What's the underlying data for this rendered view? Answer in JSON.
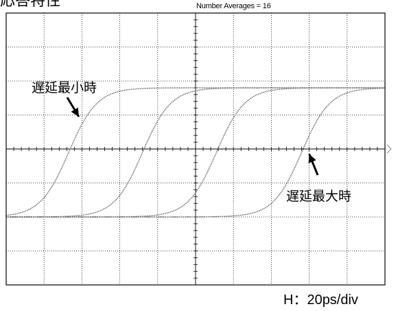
{
  "header": {
    "title": "応答特性",
    "averages_label": "Number Averages =  16"
  },
  "footer": {
    "horizontal_scale": "H：20ps/div"
  },
  "chart_data": {
    "type": "line",
    "title": "",
    "xlabel": "",
    "ylabel": "",
    "x_unit": "ps",
    "ps_per_div": 20,
    "x_divisions": 10,
    "y_divisions": 8,
    "xlim": [
      -100,
      100
    ],
    "ylim": [
      -4,
      4
    ],
    "grid": true,
    "trace_color": "#555555",
    "series": [
      {
        "low": -2.0,
        "high": 1.8,
        "center_ps": -67,
        "rise_scale_ps": 7.5
      },
      {
        "low": -2.0,
        "high": 1.8,
        "center_ps": -28,
        "rise_scale_ps": 7.5
      },
      {
        "low": -2.0,
        "high": 1.8,
        "center_ps": 11,
        "rise_scale_ps": 7.5
      },
      {
        "low": -2.0,
        "high": 1.8,
        "center_ps": 56,
        "rise_scale_ps": 7.5
      }
    ],
    "annotations": [
      {
        "text": "遅延最小時",
        "target_ps": -62,
        "target_div": 0.95
      },
      {
        "text": "遅延最大時",
        "target_ps": 60,
        "target_div": -0.15
      }
    ]
  }
}
